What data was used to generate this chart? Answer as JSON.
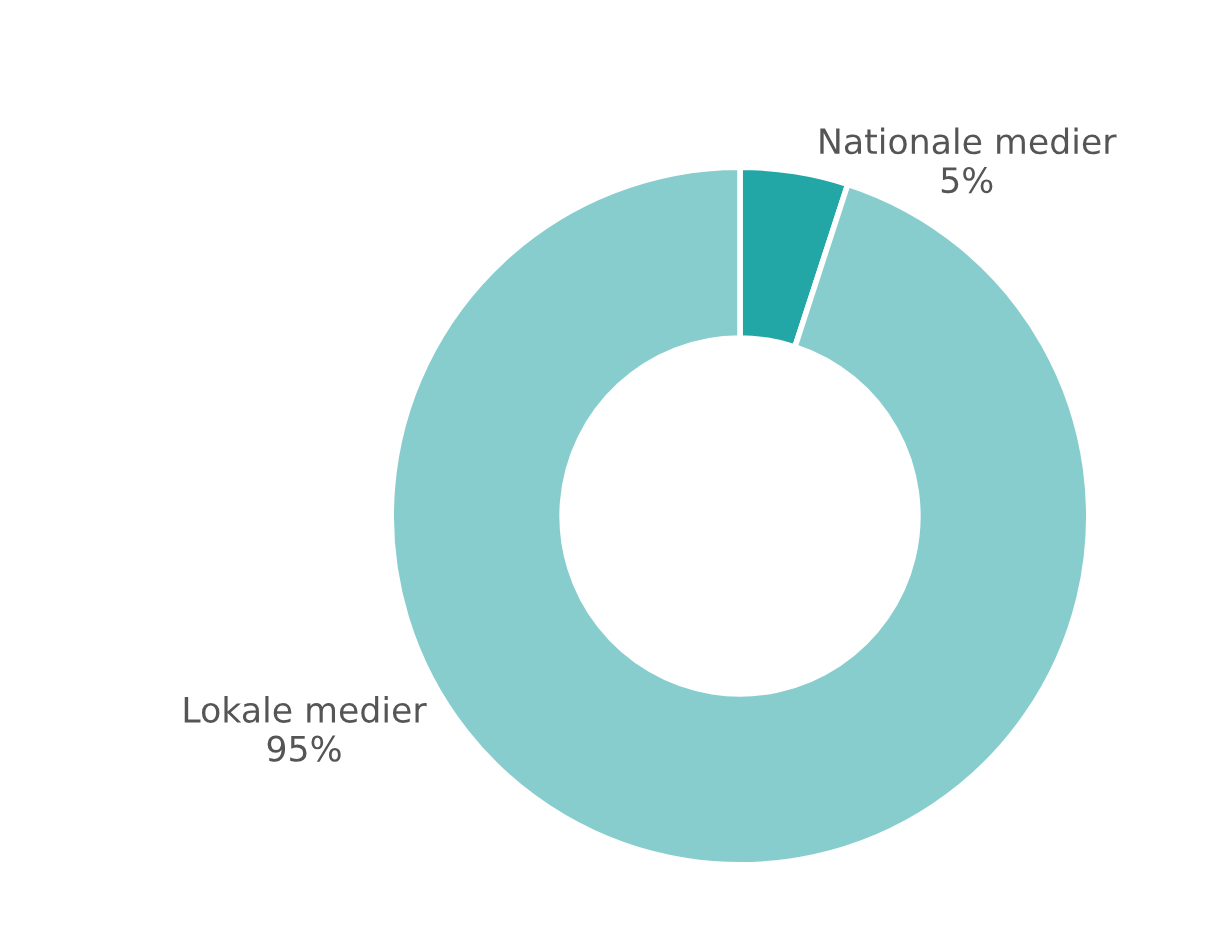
{
  "chart_data": {
    "type": "donut",
    "categories": [
      "Nationale medier",
      "Lokale medier"
    ],
    "values": [
      5,
      95
    ],
    "value_labels": [
      "5%",
      "95%"
    ],
    "colors": [
      "#22a6a6",
      "#88cdcd"
    ],
    "legend": false
  }
}
